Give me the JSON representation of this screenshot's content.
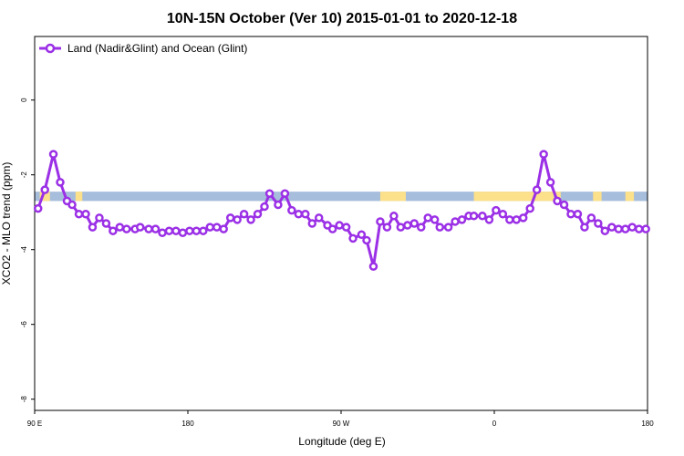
{
  "chart_data": {
    "type": "line",
    "title": "10N-15N October (Ver 10)   2015-01-01 to 2020-12-18",
    "xlabel": "Longitude (deg E)",
    "ylabel": "XCO2 - MLO trend (ppm)",
    "xlim": [
      90,
      450
    ],
    "ylim": [
      -8.3,
      1.7
    ],
    "xticks": [
      {
        "value": 90,
        "label": "90 E"
      },
      {
        "value": 180,
        "label": "180"
      },
      {
        "value": 270,
        "label": "90 W"
      },
      {
        "value": 360,
        "label": "0"
      },
      {
        "value": 450,
        "label": "180"
      }
    ],
    "yticks": [
      {
        "value": 0,
        "label": "0"
      },
      {
        "value": -2,
        "label": "-2"
      },
      {
        "value": -4,
        "label": "-4"
      },
      {
        "value": -6,
        "label": "-6"
      },
      {
        "value": -8,
        "label": "-8"
      }
    ],
    "grid": false,
    "legend_position": "top-left",
    "land_band": {
      "y_range": [
        -2.7,
        -2.45
      ],
      "ocean_color": "#a6bddb",
      "land_color": "#fde08a",
      "land_x_ranges": [
        [
          93,
          99
        ],
        [
          114,
          118
        ],
        [
          293,
          308
        ],
        [
          348,
          395
        ],
        [
          396,
          399
        ],
        [
          418,
          423
        ],
        [
          437,
          442
        ]
      ]
    },
    "series": [
      {
        "name": "Land (Nadir&Glint) and Ocean (Glint)",
        "color": "#9b30e6",
        "x": [
          92,
          96,
          101,
          105,
          109,
          112,
          116,
          120,
          124,
          128,
          132,
          136,
          140,
          144,
          149,
          152,
          157,
          161,
          165,
          169,
          173,
          177,
          181,
          185,
          189,
          193,
          197,
          201,
          205,
          209,
          213,
          217,
          221,
          225,
          228,
          233,
          237,
          241,
          245,
          249,
          253,
          257,
          262,
          265,
          269,
          273,
          277,
          282,
          285,
          289,
          293,
          297,
          301,
          305,
          309,
          313,
          317,
          321,
          325,
          328,
          333,
          337,
          341,
          345,
          348,
          353,
          357,
          361,
          365,
          369,
          373,
          377,
          381,
          385,
          389,
          393,
          397,
          401,
          405,
          409,
          413,
          417,
          421,
          425,
          429,
          433,
          437,
          441,
          445,
          449
        ],
        "y": [
          -2.9,
          -2.4,
          -1.45,
          -2.2,
          -2.7,
          -2.8,
          -3.05,
          -3.05,
          -3.4,
          -3.15,
          -3.3,
          -3.5,
          -3.4,
          -3.45,
          -3.45,
          -3.4,
          -3.45,
          -3.45,
          -3.55,
          -3.5,
          -3.5,
          -3.55,
          -3.5,
          -3.5,
          -3.5,
          -3.4,
          -3.4,
          -3.45,
          -3.15,
          -3.2,
          -3.05,
          -3.2,
          -3.05,
          -2.85,
          -2.5,
          -2.8,
          -2.5,
          -2.95,
          -3.05,
          -3.05,
          -3.3,
          -3.15,
          -3.35,
          -3.45,
          -3.35,
          -3.4,
          -3.7,
          -3.6,
          -3.75,
          -4.45,
          -3.25,
          -3.4,
          -3.1,
          -3.4,
          -3.35,
          -3.3,
          -3.4,
          -3.15,
          -3.2,
          -3.4,
          -3.4,
          -3.25,
          -3.2,
          -3.1,
          -3.1,
          -3.1,
          -3.2,
          -2.95,
          -3.05,
          -3.2,
          -3.2,
          -3.15,
          -2.9,
          -2.4,
          -1.45,
          -2.2,
          -2.7,
          -2.8,
          -3.05,
          -3.05,
          -3.4,
          -3.15,
          -3.3,
          -3.5,
          -3.4,
          -3.45,
          -3.45,
          -3.4,
          -3.45,
          -3.45
        ]
      }
    ]
  }
}
